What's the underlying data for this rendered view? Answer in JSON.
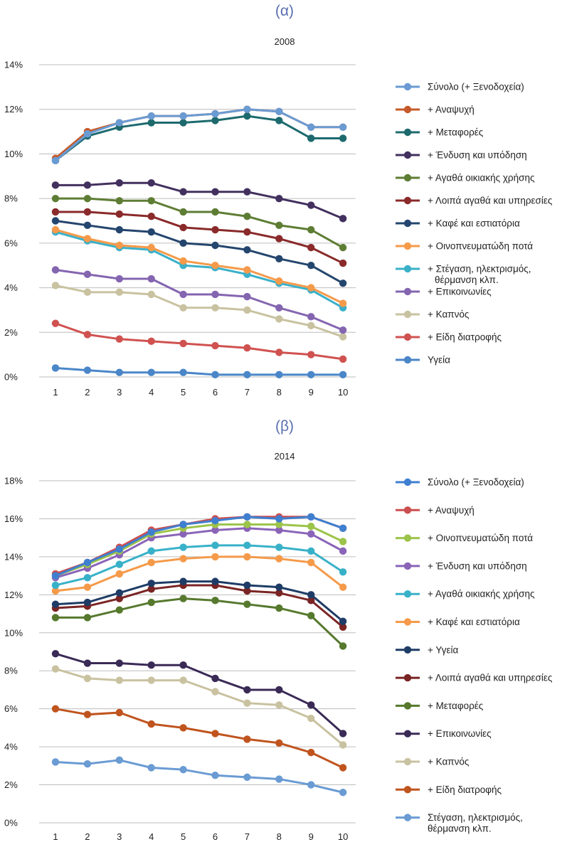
{
  "chart_data": [
    {
      "type": "line",
      "panel_label": "(α)",
      "title": "2008",
      "x": [
        1,
        2,
        3,
        4,
        5,
        6,
        7,
        8,
        9,
        10
      ],
      "ylim": [
        0,
        14
      ],
      "yticks": [
        "0%",
        "2%",
        "4%",
        "6%",
        "8%",
        "10%",
        "12%",
        "14%"
      ],
      "ytick_values": [
        0,
        2,
        4,
        6,
        8,
        10,
        12,
        14
      ],
      "grid": true,
      "legend_position": "right",
      "series": [
        {
          "name": "Σύνολο (+ Ξενοδοχεία)",
          "color": "#6a9bd3",
          "values": [
            9.7,
            10.9,
            11.4,
            11.7,
            11.7,
            11.8,
            12.0,
            11.9,
            11.2,
            11.2
          ]
        },
        {
          "name": "+ Αναψυχή",
          "color": "#c65a2a",
          "values": [
            9.8,
            11.0,
            11.4,
            11.7,
            11.7,
            11.8,
            12.0,
            11.9,
            11.2,
            11.2
          ]
        },
        {
          "name": "+ Μεταφορές",
          "color": "#1d6a6e",
          "values": [
            9.7,
            10.8,
            11.2,
            11.4,
            11.4,
            11.5,
            11.7,
            11.5,
            10.7,
            10.7
          ]
        },
        {
          "name": "+ Ένδυση και υπόδηση",
          "color": "#42305e",
          "values": [
            8.6,
            8.6,
            8.7,
            8.7,
            8.3,
            8.3,
            8.3,
            8.0,
            7.7,
            7.1
          ]
        },
        {
          "name": "+ Αγαθά οικιακής χρήσης",
          "color": "#5e7d34",
          "values": [
            8.0,
            8.0,
            7.9,
            7.9,
            7.4,
            7.4,
            7.2,
            6.8,
            6.6,
            5.8
          ]
        },
        {
          "name": "+ Λοιπά αγαθά και υπηρεσίες",
          "color": "#8a2a2a",
          "values": [
            7.4,
            7.4,
            7.3,
            7.2,
            6.7,
            6.6,
            6.5,
            6.2,
            5.8,
            5.1
          ]
        },
        {
          "name": "+ Καφέ και εστιατόρια",
          "color": "#24466e",
          "values": [
            7.0,
            6.8,
            6.6,
            6.5,
            6.0,
            5.9,
            5.7,
            5.3,
            5.0,
            4.2
          ]
        },
        {
          "name": "+ Οινοπνευματώδη ποτά",
          "color": "#f59a4a",
          "values": [
            6.6,
            6.2,
            5.9,
            5.8,
            5.2,
            5.0,
            4.8,
            4.3,
            4.0,
            3.3
          ]
        },
        {
          "name": "+ Στέγαση, ηλεκτρισμός, θέρμανση κλπ.",
          "color": "#3ab0c9",
          "values": [
            6.5,
            6.1,
            5.8,
            5.7,
            5.0,
            4.9,
            4.6,
            4.2,
            3.9,
            3.1
          ]
        },
        {
          "name": "+ Επικοινωνίες",
          "color": "#8465b0",
          "values": [
            4.8,
            4.6,
            4.4,
            4.4,
            3.7,
            3.7,
            3.6,
            3.1,
            2.7,
            2.1
          ]
        },
        {
          "name": "+ Καπνός",
          "color": "#c9c2a0",
          "values": [
            4.1,
            3.8,
            3.8,
            3.7,
            3.1,
            3.1,
            3.0,
            2.6,
            2.3,
            1.8
          ]
        },
        {
          "name": "+ Είδη διατροφής",
          "color": "#d05250",
          "values": [
            2.4,
            1.9,
            1.7,
            1.6,
            1.5,
            1.4,
            1.3,
            1.1,
            1.0,
            0.8
          ]
        },
        {
          "name": "Υγεία",
          "color": "#4a86c8",
          "values": [
            0.4,
            0.3,
            0.2,
            0.2,
            0.2,
            0.1,
            0.1,
            0.1,
            0.1,
            0.1
          ]
        }
      ]
    },
    {
      "type": "line",
      "panel_label": "(β)",
      "title": "2014",
      "x": [
        1,
        2,
        3,
        4,
        5,
        6,
        7,
        8,
        9,
        10
      ],
      "ylim": [
        0,
        18
      ],
      "yticks": [
        "0%",
        "2%",
        "4%",
        "6%",
        "8%",
        "10%",
        "12%",
        "14%",
        "16%",
        "18%"
      ],
      "ytick_values": [
        0,
        2,
        4,
        6,
        8,
        10,
        12,
        14,
        16,
        18
      ],
      "grid": true,
      "legend_position": "right",
      "series": [
        {
          "name": "Σύνολο (+ Ξενοδοχεία)",
          "color": "#3f7fd0",
          "values": [
            13.0,
            13.7,
            14.4,
            15.3,
            15.7,
            15.9,
            16.1,
            16.0,
            16.1,
            15.5
          ]
        },
        {
          "name": "+ Αναψυχή",
          "color": "#cc4f4f",
          "values": [
            13.1,
            13.7,
            14.5,
            15.4,
            15.7,
            16.0,
            16.1,
            16.1,
            16.1,
            15.5
          ]
        },
        {
          "name": "+ Οινοπνευματώδη ποτά",
          "color": "#9cc44a",
          "values": [
            13.0,
            13.6,
            14.3,
            15.2,
            15.5,
            15.7,
            15.7,
            15.7,
            15.6,
            14.8
          ]
        },
        {
          "name": "+ Ένδυση και υπόδηση",
          "color": "#8a64b8",
          "values": [
            12.9,
            13.4,
            14.1,
            15.0,
            15.2,
            15.4,
            15.5,
            15.4,
            15.2,
            14.3
          ]
        },
        {
          "name": "+ Αγαθά οικιακής χρήσης",
          "color": "#38b1c8",
          "values": [
            12.5,
            12.9,
            13.6,
            14.3,
            14.5,
            14.6,
            14.6,
            14.5,
            14.3,
            13.2
          ]
        },
        {
          "name": "+ Καφέ και εστιατόρια",
          "color": "#f59a4a",
          "values": [
            12.2,
            12.4,
            13.1,
            13.7,
            13.9,
            14.0,
            14.0,
            13.9,
            13.7,
            12.4
          ]
        },
        {
          "name": "+ Υγεία",
          "color": "#1e3c66",
          "values": [
            11.5,
            11.6,
            12.1,
            12.6,
            12.7,
            12.7,
            12.5,
            12.4,
            12.0,
            10.6
          ]
        },
        {
          "name": "+ Λοιπά αγαθά και υπηρεσίες",
          "color": "#7a2424",
          "values": [
            11.3,
            11.4,
            11.8,
            12.3,
            12.5,
            12.5,
            12.2,
            12.1,
            11.7,
            10.3
          ]
        },
        {
          "name": "+ Μεταφορές",
          "color": "#56792e",
          "values": [
            10.8,
            10.8,
            11.2,
            11.6,
            11.8,
            11.7,
            11.5,
            11.3,
            10.9,
            9.3
          ]
        },
        {
          "name": "+ Επικοινωνίες",
          "color": "#3a2a56",
          "values": [
            8.9,
            8.4,
            8.4,
            8.3,
            8.3,
            7.6,
            7.0,
            7.0,
            6.2,
            4.7
          ]
        },
        {
          "name": "+ Καπνός",
          "color": "#c9c2a0",
          "values": [
            8.1,
            7.6,
            7.5,
            7.5,
            7.5,
            6.9,
            6.3,
            6.2,
            5.5,
            4.1
          ]
        },
        {
          "name": "+ Είδη διατροφής",
          "color": "#c0541e",
          "values": [
            6.0,
            5.7,
            5.8,
            5.2,
            5.0,
            4.7,
            4.4,
            4.2,
            3.7,
            2.9
          ]
        },
        {
          "name": "Στέγαση, ηλεκτρισμός, θέρμανση κλπ.",
          "color": "#6a9bd3",
          "values": [
            3.2,
            3.1,
            3.3,
            2.9,
            2.8,
            2.5,
            2.4,
            2.3,
            2.0,
            1.6
          ]
        }
      ]
    }
  ]
}
